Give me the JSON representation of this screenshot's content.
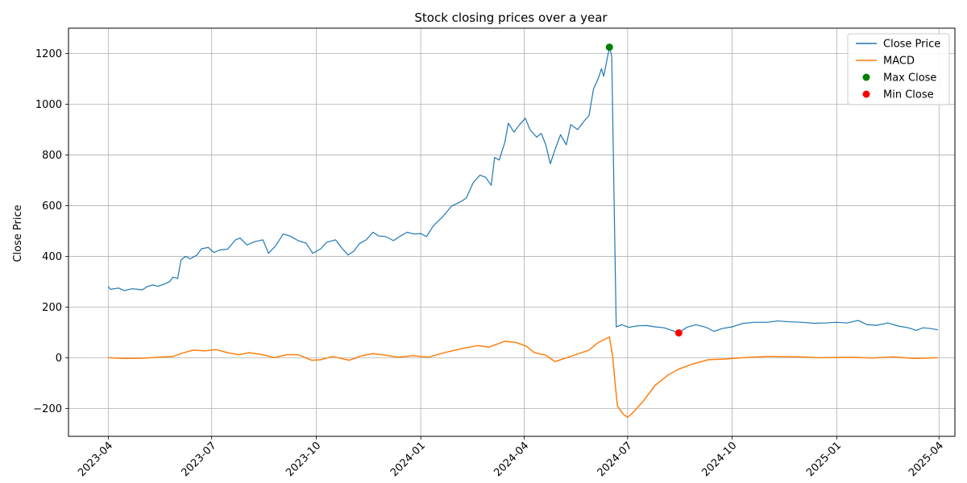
{
  "chart_data": {
    "type": "line",
    "title": "Stock closing prices over a year",
    "xlabel": "",
    "ylabel": "Close Price",
    "ylim": [
      -310,
      1300
    ],
    "xlim": [
      "2023-02-25",
      "2025-04-15"
    ],
    "grid": true,
    "legend_position": "top-right",
    "x_ticks": [
      "2023-04",
      "2023-07",
      "2023-10",
      "2024-01",
      "2024-04",
      "2024-07",
      "2024-10",
      "2025-01",
      "2025-04"
    ],
    "y_ticks": [
      -200,
      0,
      200,
      400,
      600,
      800,
      1000,
      1200
    ],
    "series": [
      {
        "name": "Close Price",
        "color": "#1f77b4",
        "points": [
          [
            "2023-04-01",
            280
          ],
          [
            "2023-04-03",
            270
          ],
          [
            "2023-04-10",
            275
          ],
          [
            "2023-04-15",
            265
          ],
          [
            "2023-04-22",
            272
          ],
          [
            "2023-05-01",
            268
          ],
          [
            "2023-05-05",
            280
          ],
          [
            "2023-05-10",
            287
          ],
          [
            "2023-05-15",
            282
          ],
          [
            "2023-05-20",
            290
          ],
          [
            "2023-05-25",
            300
          ],
          [
            "2023-05-28",
            318
          ],
          [
            "2023-06-01",
            312
          ],
          [
            "2023-06-04",
            385
          ],
          [
            "2023-06-08",
            400
          ],
          [
            "2023-06-12",
            390
          ],
          [
            "2023-06-18",
            405
          ],
          [
            "2023-06-22",
            430
          ],
          [
            "2023-06-28",
            435
          ],
          [
            "2023-07-03",
            415
          ],
          [
            "2023-07-08",
            425
          ],
          [
            "2023-07-15",
            428
          ],
          [
            "2023-07-22",
            465
          ],
          [
            "2023-07-26",
            472
          ],
          [
            "2023-08-01",
            445
          ],
          [
            "2023-08-08",
            458
          ],
          [
            "2023-08-15",
            465
          ],
          [
            "2023-08-20",
            412
          ],
          [
            "2023-08-26",
            440
          ],
          [
            "2023-09-02",
            488
          ],
          [
            "2023-09-08",
            480
          ],
          [
            "2023-09-15",
            462
          ],
          [
            "2023-09-22",
            452
          ],
          [
            "2023-09-28",
            412
          ],
          [
            "2023-10-05",
            430
          ],
          [
            "2023-10-10",
            455
          ],
          [
            "2023-10-18",
            465
          ],
          [
            "2023-10-24",
            430
          ],
          [
            "2023-10-29",
            405
          ],
          [
            "2023-11-03",
            420
          ],
          [
            "2023-11-08",
            450
          ],
          [
            "2023-11-14",
            465
          ],
          [
            "2023-11-20",
            495
          ],
          [
            "2023-11-25",
            480
          ],
          [
            "2023-12-01",
            478
          ],
          [
            "2023-12-08",
            462
          ],
          [
            "2023-12-14",
            480
          ],
          [
            "2023-12-20",
            495
          ],
          [
            "2023-12-26",
            488
          ],
          [
            "2024-01-01",
            490
          ],
          [
            "2024-01-06",
            478
          ],
          [
            "2024-01-12",
            520
          ],
          [
            "2024-01-20",
            555
          ],
          [
            "2024-01-28",
            598
          ],
          [
            "2024-02-05",
            615
          ],
          [
            "2024-02-10",
            630
          ],
          [
            "2024-02-16",
            690
          ],
          [
            "2024-02-22",
            720
          ],
          [
            "2024-02-27",
            712
          ],
          [
            "2024-03-03",
            680
          ],
          [
            "2024-03-06",
            790
          ],
          [
            "2024-03-10",
            780
          ],
          [
            "2024-03-15",
            850
          ],
          [
            "2024-03-18",
            925
          ],
          [
            "2024-03-23",
            890
          ],
          [
            "2024-03-28",
            920
          ],
          [
            "2024-04-02",
            945
          ],
          [
            "2024-04-06",
            900
          ],
          [
            "2024-04-12",
            870
          ],
          [
            "2024-04-16",
            885
          ],
          [
            "2024-04-20",
            840
          ],
          [
            "2024-04-24",
            765
          ],
          [
            "2024-04-28",
            820
          ],
          [
            "2024-05-03",
            880
          ],
          [
            "2024-05-08",
            840
          ],
          [
            "2024-05-12",
            920
          ],
          [
            "2024-05-18",
            900
          ],
          [
            "2024-05-24",
            935
          ],
          [
            "2024-05-28",
            955
          ],
          [
            "2024-06-01",
            1060
          ],
          [
            "2024-06-05",
            1100
          ],
          [
            "2024-06-08",
            1140
          ],
          [
            "2024-06-10",
            1110
          ],
          [
            "2024-06-13",
            1180
          ],
          [
            "2024-06-15",
            1225
          ],
          [
            "2024-06-17",
            1190
          ],
          [
            "2024-06-21",
            122
          ],
          [
            "2024-06-26",
            130
          ],
          [
            "2024-07-02",
            120
          ],
          [
            "2024-07-10",
            126
          ],
          [
            "2024-07-18",
            127
          ],
          [
            "2024-07-25",
            122
          ],
          [
            "2024-08-02",
            118
          ],
          [
            "2024-08-09",
            108
          ],
          [
            "2024-08-15",
            98
          ],
          [
            "2024-08-22",
            120
          ],
          [
            "2024-08-30",
            130
          ],
          [
            "2024-09-08",
            120
          ],
          [
            "2024-09-15",
            104
          ],
          [
            "2024-09-22",
            115
          ],
          [
            "2024-10-01",
            122
          ],
          [
            "2024-10-10",
            135
          ],
          [
            "2024-10-20",
            140
          ],
          [
            "2024-11-01",
            140
          ],
          [
            "2024-11-10",
            145
          ],
          [
            "2024-11-20",
            142
          ],
          [
            "2024-12-01",
            140
          ],
          [
            "2024-12-12",
            136
          ],
          [
            "2024-12-22",
            137
          ],
          [
            "2025-01-01",
            140
          ],
          [
            "2025-01-10",
            137
          ],
          [
            "2025-01-20",
            147
          ],
          [
            "2025-01-28",
            130
          ],
          [
            "2025-02-05",
            128
          ],
          [
            "2025-02-15",
            137
          ],
          [
            "2025-02-24",
            125
          ],
          [
            "2025-03-05",
            118
          ],
          [
            "2025-03-12",
            108
          ],
          [
            "2025-03-18",
            118
          ],
          [
            "2025-03-25",
            115
          ],
          [
            "2025-03-31",
            110
          ]
        ]
      },
      {
        "name": "MACD",
        "color": "#ff7f0e",
        "points": [
          [
            "2023-04-01",
            0
          ],
          [
            "2023-04-15",
            -3
          ],
          [
            "2023-05-01",
            -2
          ],
          [
            "2023-05-15",
            2
          ],
          [
            "2023-05-28",
            5
          ],
          [
            "2023-06-05",
            18
          ],
          [
            "2023-06-15",
            30
          ],
          [
            "2023-06-25",
            27
          ],
          [
            "2023-07-05",
            32
          ],
          [
            "2023-07-15",
            20
          ],
          [
            "2023-07-25",
            12
          ],
          [
            "2023-08-03",
            20
          ],
          [
            "2023-08-15",
            12
          ],
          [
            "2023-08-25",
            0
          ],
          [
            "2023-09-05",
            12
          ],
          [
            "2023-09-15",
            12
          ],
          [
            "2023-09-27",
            -10
          ],
          [
            "2023-10-05",
            -8
          ],
          [
            "2023-10-15",
            5
          ],
          [
            "2023-10-30",
            -10
          ],
          [
            "2023-11-10",
            8
          ],
          [
            "2023-11-20",
            16
          ],
          [
            "2023-12-01",
            10
          ],
          [
            "2023-12-12",
            2
          ],
          [
            "2023-12-25",
            8
          ],
          [
            "2024-01-08",
            2
          ],
          [
            "2024-01-20",
            18
          ],
          [
            "2024-02-05",
            35
          ],
          [
            "2024-02-20",
            48
          ],
          [
            "2024-03-01",
            42
          ],
          [
            "2024-03-15",
            65
          ],
          [
            "2024-03-25",
            60
          ],
          [
            "2024-04-03",
            45
          ],
          [
            "2024-04-10",
            20
          ],
          [
            "2024-04-20",
            10
          ],
          [
            "2024-04-28",
            -15
          ],
          [
            "2024-05-05",
            -5
          ],
          [
            "2024-05-15",
            10
          ],
          [
            "2024-05-28",
            30
          ],
          [
            "2024-06-05",
            60
          ],
          [
            "2024-06-15",
            82
          ],
          [
            "2024-06-18",
            0
          ],
          [
            "2024-06-20",
            -100
          ],
          [
            "2024-06-22",
            -190
          ],
          [
            "2024-06-27",
            -222
          ],
          [
            "2024-07-01",
            -235
          ],
          [
            "2024-07-06",
            -215
          ],
          [
            "2024-07-15",
            -170
          ],
          [
            "2024-07-25",
            -110
          ],
          [
            "2024-08-05",
            -70
          ],
          [
            "2024-08-15",
            -45
          ],
          [
            "2024-08-27",
            -25
          ],
          [
            "2024-09-10",
            -8
          ],
          [
            "2024-09-25",
            -5
          ],
          [
            "2024-10-10",
            0
          ],
          [
            "2024-11-01",
            5
          ],
          [
            "2024-12-01",
            3
          ],
          [
            "2024-12-15",
            0
          ],
          [
            "2025-01-15",
            2
          ],
          [
            "2025-02-01",
            -1
          ],
          [
            "2025-02-20",
            3
          ],
          [
            "2025-03-10",
            -3
          ],
          [
            "2025-03-31",
            0
          ]
        ]
      }
    ],
    "markers": [
      {
        "name": "Max Close",
        "color": "#008000",
        "x": "2024-06-15",
        "y": 1225
      },
      {
        "name": "Min Close",
        "color": "#ff0000",
        "x": "2024-08-15",
        "y": 98
      }
    ]
  }
}
